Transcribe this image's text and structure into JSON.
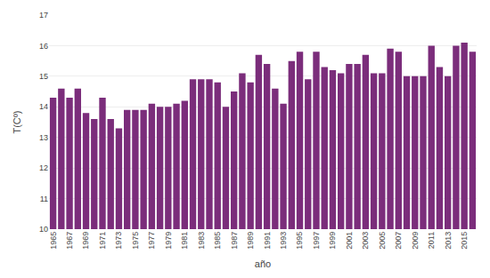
{
  "chart_data": {
    "type": "bar",
    "xlabel": "año",
    "ylabel": "T(Cº)",
    "categories": [
      "1965",
      null,
      "1967",
      null,
      "1969",
      null,
      "1971",
      null,
      "1973",
      null,
      "1975",
      null,
      "1977",
      null,
      "1979",
      null,
      "1981",
      null,
      "1983",
      null,
      "1985",
      null,
      "1987",
      null,
      "1989",
      null,
      "1991",
      null,
      "1993",
      null,
      "1995",
      null,
      "1997",
      null,
      "1999",
      null,
      "2001",
      null,
      "2003",
      null,
      "2005",
      null,
      "2007",
      null,
      "2009",
      null,
      "2011",
      null,
      "2013",
      null,
      "2015",
      null
    ],
    "values": [
      14.3,
      14.6,
      14.3,
      14.6,
      13.8,
      13.6,
      14.3,
      13.6,
      13.3,
      13.9,
      13.9,
      13.9,
      14.1,
      14.0,
      14.0,
      14.1,
      14.2,
      14.9,
      14.9,
      14.9,
      14.8,
      14.0,
      14.5,
      15.1,
      14.8,
      15.7,
      15.4,
      14.6,
      14.1,
      15.5,
      15.8,
      14.9,
      15.8,
      15.3,
      15.2,
      15.1,
      15.4,
      15.4,
      15.7,
      15.1,
      15.1,
      15.9,
      15.8,
      15.0,
      15.0,
      15.0,
      16.0,
      15.3,
      15.0,
      16.0,
      16.1,
      15.8
    ],
    "color": "#7b2d7b",
    "ylim": [
      10,
      17
    ],
    "yticks": [
      10,
      11,
      12,
      13,
      14,
      15,
      16,
      17
    ],
    "grid": true
  }
}
